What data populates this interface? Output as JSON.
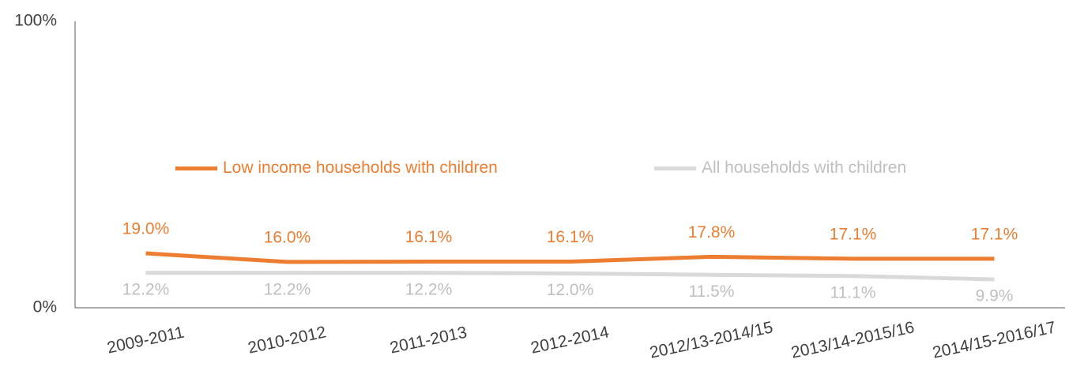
{
  "chart_data": {
    "type": "line",
    "categories": [
      "2009-2011",
      "2010-2012",
      "2011-2013",
      "2012-2014",
      "2012/13-2014/15",
      "2013/14-2015/16",
      "2014/15-2016/17"
    ],
    "series": [
      {
        "name": "Low income households with children",
        "color": "#ED7D31",
        "values": [
          19.0,
          16.0,
          16.1,
          16.1,
          17.8,
          17.1,
          17.1
        ],
        "value_labels": [
          "19.0%",
          "16.0%",
          "16.1%",
          "16.1%",
          "17.8%",
          "17.1%",
          "17.1%"
        ]
      },
      {
        "name": "All households with children",
        "color": "#D9D9D9",
        "values": [
          12.2,
          12.2,
          12.2,
          12.0,
          11.5,
          11.1,
          9.9
        ],
        "value_labels": [
          "12.2%",
          "12.2%",
          "12.2%",
          "12.0%",
          "11.5%",
          "11.1%",
          "9.9%"
        ]
      }
    ],
    "ylim": [
      0,
      100
    ],
    "yticks": [
      {
        "value": 0,
        "label": "0%"
      },
      {
        "value": 100,
        "label": "100%"
      }
    ],
    "legend": "center"
  }
}
